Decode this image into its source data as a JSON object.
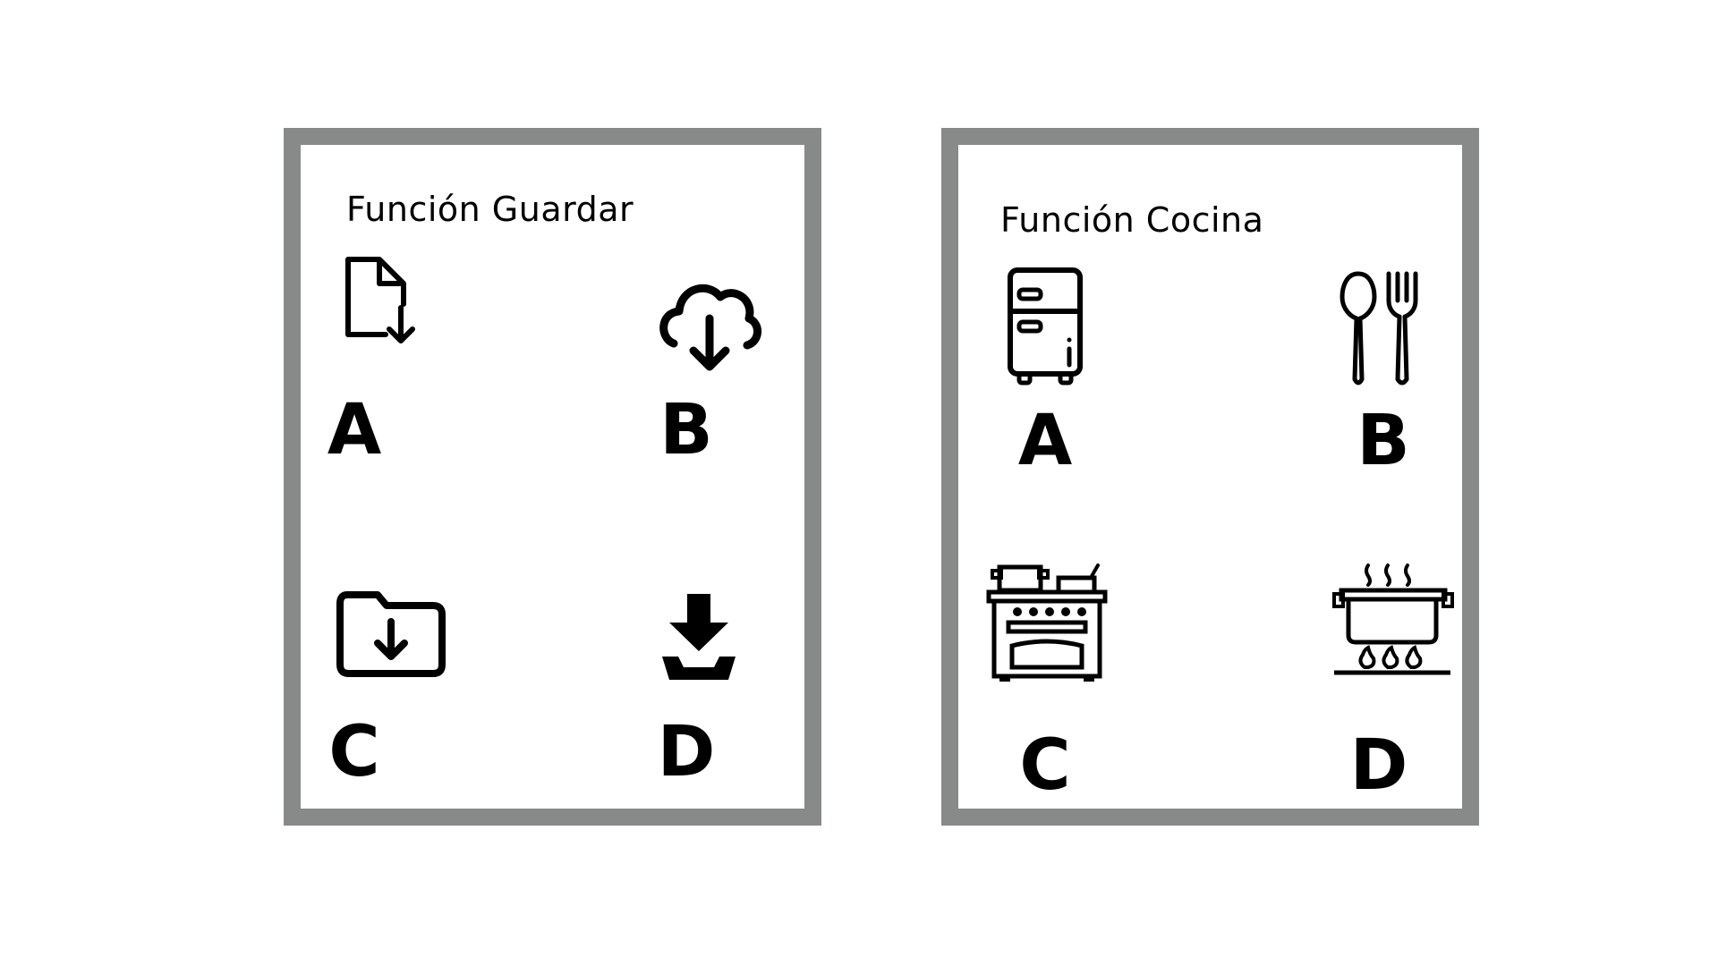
{
  "panels": [
    {
      "title": "Función Guardar",
      "options": [
        {
          "letter": "A",
          "icon": "file-download-icon"
        },
        {
          "letter": "B",
          "icon": "cloud-download-icon"
        },
        {
          "letter": "C",
          "icon": "folder-download-icon"
        },
        {
          "letter": "D",
          "icon": "tray-download-icon"
        }
      ]
    },
    {
      "title": "Función Cocina",
      "options": [
        {
          "letter": "A",
          "icon": "refrigerator-icon"
        },
        {
          "letter": "B",
          "icon": "spoon-fork-icon"
        },
        {
          "letter": "C",
          "icon": "stove-oven-icon"
        },
        {
          "letter": "D",
          "icon": "cooking-pot-icon"
        }
      ]
    }
  ],
  "colors": {
    "frame": "#878a89",
    "background": "#ffffff",
    "ink": "#000000"
  }
}
